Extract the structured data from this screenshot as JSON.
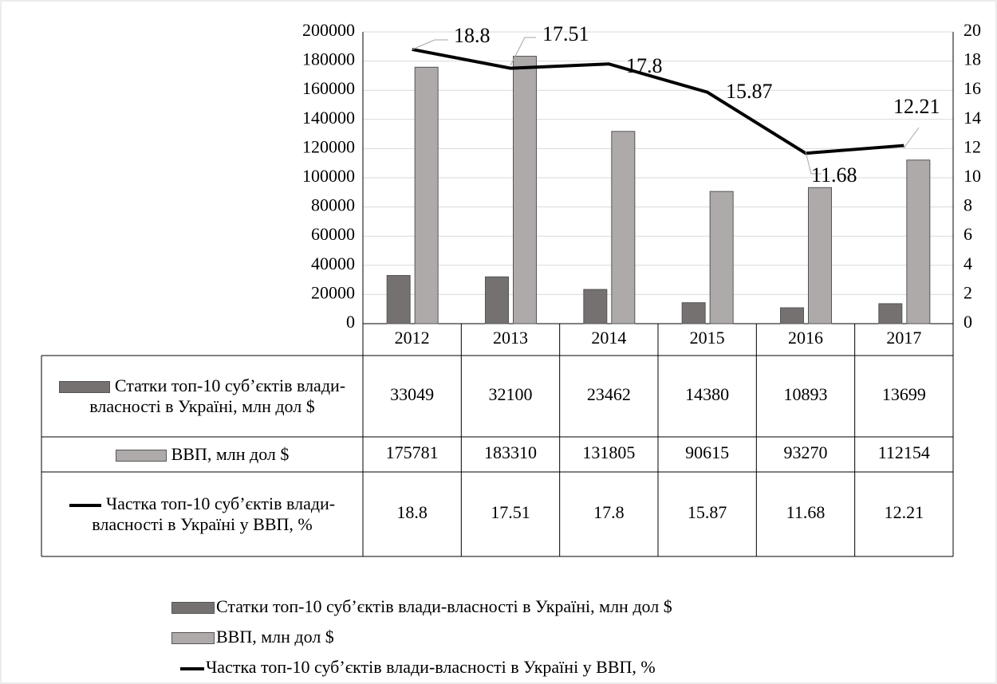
{
  "chart_data": {
    "type": "bar",
    "categories": [
      "2012",
      "2013",
      "2014",
      "2015",
      "2016",
      "2017"
    ],
    "series": [
      {
        "name": "Статки топ-10 суб’єктів влади-власності в Україні, млн дол $",
        "color": "#767171",
        "values": [
          33049,
          32100,
          23462,
          14380,
          10893,
          13699
        ]
      },
      {
        "name": "ВВП, млн дол $",
        "color": "#aeaaaa",
        "values": [
          175781,
          183310,
          131805,
          90615,
          93270,
          112154
        ]
      },
      {
        "name": "Частка топ-10 суб’єктів влади-власності в Україні у ВВП, %",
        "color": "#000000",
        "type": "line",
        "axis": "y2",
        "values": [
          18.8,
          17.51,
          17.8,
          15.87,
          11.68,
          12.21
        ]
      }
    ],
    "ylim": [
      0,
      200000
    ],
    "yticks": [
      0,
      20000,
      40000,
      60000,
      80000,
      100000,
      120000,
      140000,
      160000,
      180000,
      200000
    ],
    "y2lim": [
      0,
      20
    ],
    "y2ticks": [
      0,
      2,
      4,
      6,
      8,
      10,
      12,
      14,
      16,
      18,
      20
    ],
    "grid": true,
    "legend": "bottom",
    "data_table": true
  }
}
